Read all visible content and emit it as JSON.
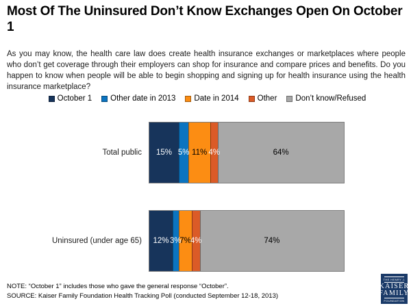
{
  "page": {
    "title": "Most Of The Uninsured Don’t Know Exchanges Open On October 1",
    "intro": "As you may know, the health care law does create health insurance exchanges or marketplaces where people who don’t get coverage through their employers can shop for insurance and compare prices and benefits. Do you happen to know when people will be able to begin shopping and signing up for health insurance using the health insurance marketplace?",
    "note": "NOTE: “October 1” includes those who gave the general response “October”.",
    "source": "SOURCE: Kaiser Family Foundation Health Tracking Poll (conducted September 12-18, 2013)"
  },
  "chart_data": {
    "type": "bar",
    "orientation": "horizontal",
    "stacked": true,
    "title": "Most Of The Uninsured Don’t Know Exchanges Open On October 1",
    "categories": [
      "Total public",
      "Uninsured (under age 65)"
    ],
    "series": [
      {
        "name": "October 1",
        "values": [
          15,
          12
        ],
        "color": "#17345B",
        "label_color": "#FFFFFF"
      },
      {
        "name": "Other date in 2013",
        "values": [
          5,
          3
        ],
        "color": "#0B74C0",
        "label_color": "#FFFFFF"
      },
      {
        "name": "Date in 2014",
        "values": [
          11,
          7
        ],
        "color": "#FC8D13",
        "label_color": "#000000"
      },
      {
        "name": "Other",
        "values": [
          4,
          4
        ],
        "color": "#DB5B27",
        "label_color": "#FFFFFF"
      },
      {
        "name": "Don’t know/Refused",
        "values": [
          64,
          74
        ],
        "color": "#A8A8A8",
        "label_color": "#000000"
      }
    ],
    "value_suffix": "%",
    "xlim": [
      0,
      100
    ],
    "legend_position": "top",
    "grid": false,
    "bar_border_color": "#7F7F7F"
  },
  "logo": {
    "top_line": "THE HENRY J.",
    "name_line1": "KAISER",
    "name_line2": "FAMILY",
    "bottom_line": "FOUNDATION",
    "background": "#1A3A68"
  }
}
